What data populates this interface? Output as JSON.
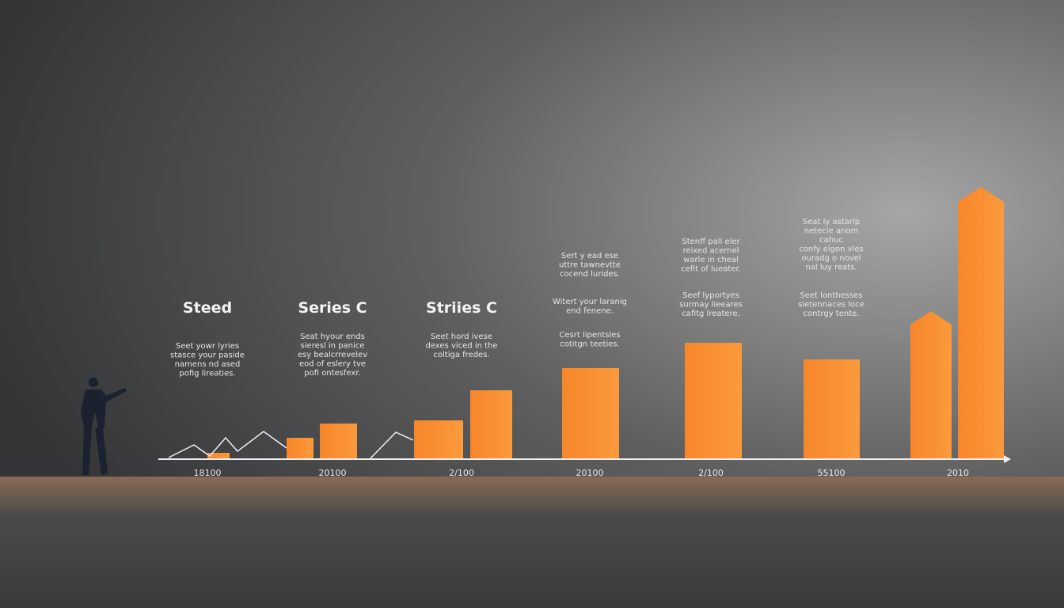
{
  "headings": [
    "Steed",
    "Series C",
    "Striies C"
  ],
  "captions": [
    {
      "lines": [
        "Seet yowr lyries",
        "stasce your paside",
        "namens nd ased",
        "pofig lireaties."
      ]
    },
    {
      "lines": [
        "Seat hyour ends",
        "sieresl in panice",
        "esy bealcrrevelev",
        "eod of eslery tve",
        "pofi ontesfexr."
      ]
    },
    {
      "lines": [
        "Seet hord ivese",
        "dexes viced in the",
        "coltiga fredes."
      ]
    },
    {
      "lines": [
        "Sert y ead ese",
        "uttre tawnevtte",
        "cocend lurides."
      ]
    },
    {
      "lines": [
        "Witert your laranig",
        "end fenene."
      ]
    },
    {
      "lines": [
        "Cesrt lipentsles",
        "cotitgn teeties."
      ]
    },
    {
      "lines": [
        "Stenff pall eler",
        "reixed acernel",
        "warle in cheal",
        "cefit of lueater."
      ]
    },
    {
      "lines": [
        "Seef lyportyes",
        "surmay lieeares",
        "cafitg lreatere."
      ]
    },
    {
      "lines": [
        "Seat ly astarlp",
        "netecie anom",
        "cahuc",
        "confy elgon vles",
        "ouradg o novel",
        "nal luy reats."
      ]
    },
    {
      "lines": [
        "Seet lonthesses",
        "sietennaces loce",
        "contrgy tente."
      ]
    }
  ],
  "x_labels": [
    "18100",
    "20100",
    "2/100",
    "20100",
    "2/100",
    "55100",
    "2010"
  ]
}
